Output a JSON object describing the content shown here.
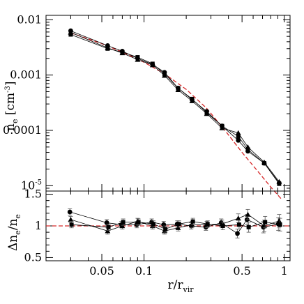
{
  "chart_data": [
    {
      "type": "line",
      "panel": "top",
      "xscale": "log",
      "yscale": "log",
      "xlim": [
        0.02,
        1.1
      ],
      "ylim": [
        8e-06,
        0.012
      ],
      "ylabel": {
        "main": "n",
        "sub": "e",
        "unit_open": " [cm",
        "unit_sup": "-3",
        "unit_close": "]"
      },
      "ytick_labels": [
        {
          "value": 0.01,
          "label": "0.01"
        },
        {
          "value": 0.001,
          "label": "0.001"
        },
        {
          "value": 0.0001,
          "label": "0.0001"
        },
        {
          "value": 1e-05,
          "label": "10",
          "sup": "-5"
        }
      ],
      "x": [
        0.03,
        0.055,
        0.07,
        0.09,
        0.115,
        0.14,
        0.175,
        0.22,
        0.28,
        0.36,
        0.47,
        0.55,
        0.72,
        0.92
      ],
      "model_curve": {
        "style": "dashed",
        "color": "#d62728",
        "x": [
          0.03,
          0.05,
          0.07,
          0.1,
          0.14,
          0.2,
          0.28,
          0.38,
          0.5,
          0.65,
          0.8,
          0.95
        ],
        "y": [
          0.0058,
          0.0037,
          0.0026,
          0.0017,
          0.00105,
          0.00055,
          0.00025,
          9.8e-05,
          4e-05,
          1.8e-05,
          9.5e-06,
          5.8e-06
        ]
      },
      "series": [
        {
          "marker": "circle",
          "values": [
            0.0063,
            0.0034,
            0.0027,
            0.002,
            0.00155,
            0.00112,
            0.00058,
            0.00036,
            0.00022,
            0.00012,
            6.6e-05,
            4.2e-05,
            2.55e-05,
            1.12e-05
          ]
        },
        {
          "marker": "triangle",
          "values": [
            0.0059,
            0.0031,
            0.0025,
            0.0019,
            0.00152,
            0.00098,
            0.00054,
            0.00034,
            0.0002,
            0.00011,
            9e-05,
            5e-05,
            2.65e-05,
            1.18e-05
          ]
        },
        {
          "marker": "square",
          "values": [
            0.0054,
            0.003,
            0.0026,
            0.0021,
            0.0016,
            0.00105,
            0.00058,
            0.00037,
            0.00021,
            0.00012,
            7.8e-05,
            4.5e-05,
            2.55e-05,
            1.08e-05
          ]
        }
      ]
    },
    {
      "type": "line",
      "panel": "bottom",
      "xscale": "log",
      "yscale": "linear",
      "xlim": [
        0.02,
        1.1
      ],
      "ylim": [
        0.45,
        1.55
      ],
      "xlabel": {
        "main": "r/r",
        "sub": "vir"
      },
      "ylabel": {
        "main": "Δn",
        "sub1": "e",
        "mid": "/n",
        "sub2": "e"
      },
      "xtick_labels": [
        {
          "value": 0.05,
          "label": "0.05"
        },
        {
          "value": 0.1,
          "label": "0.1"
        },
        {
          "value": 0.5,
          "label": "0.5"
        },
        {
          "value": 1,
          "label": "1"
        }
      ],
      "ytick_labels": [
        {
          "value": 0.5,
          "label": "0.5"
        },
        {
          "value": 1.0,
          "label": "1"
        },
        {
          "value": 1.5,
          "label": "1.5"
        }
      ],
      "reference_line": {
        "value": 1.0,
        "style": "dashed",
        "color": "#d62728"
      },
      "x": [
        0.03,
        0.055,
        0.07,
        0.09,
        0.115,
        0.14,
        0.175,
        0.22,
        0.28,
        0.36,
        0.47,
        0.55,
        0.72,
        0.92
      ],
      "series": [
        {
          "marker": "circle",
          "values": [
            1.22,
            1.05,
            1.02,
            1.02,
            1.06,
            1.02,
            1.03,
            1.0,
            0.98,
            1.05,
            0.88,
            1.1,
            0.98,
            1.03
          ]
        },
        {
          "marker": "triangle",
          "values": [
            1.1,
            0.92,
            1.0,
            1.07,
            1.0,
            0.92,
            0.97,
            1.02,
            1.02,
            1.03,
            1.12,
            1.18,
            1.0,
            1.08
          ]
        },
        {
          "marker": "square",
          "values": [
            1.02,
            0.98,
            1.06,
            1.06,
            1.03,
            0.95,
            1.03,
            1.07,
            1.03,
            1.0,
            1.02,
            0.98,
            1.06,
            1.02
          ]
        }
      ],
      "errors": [
        0.05,
        0.05,
        0.05,
        0.05,
        0.05,
        0.05,
        0.05,
        0.05,
        0.05,
        0.06,
        0.07,
        0.08,
        0.09,
        0.1
      ]
    }
  ]
}
